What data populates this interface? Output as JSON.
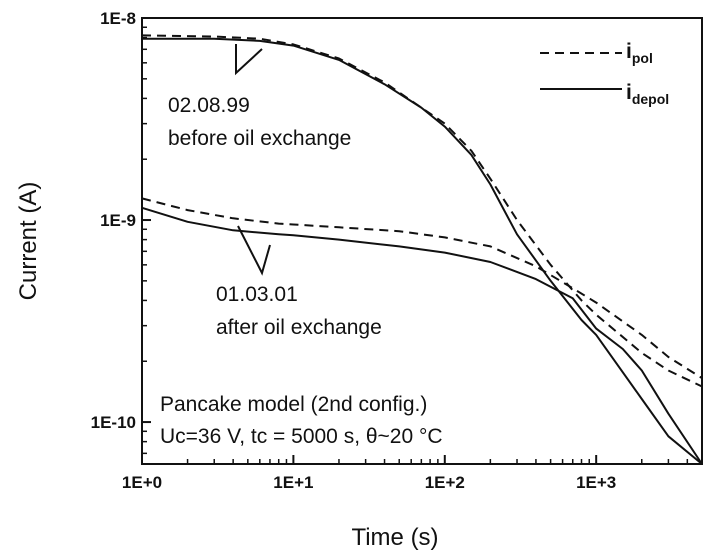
{
  "chart_data": {
    "type": "line",
    "xlabel": "Time (s)",
    "ylabel": "Current (A)",
    "x_scale": "log",
    "y_scale": "log",
    "xlim": [
      1,
      5000
    ],
    "ylim": [
      6.2e-11,
      1e-08
    ],
    "grid": false,
    "x_ticks": [
      {
        "value": 1,
        "label": "1E+0"
      },
      {
        "value": 10,
        "label": "1E+1"
      },
      {
        "value": 100,
        "label": "1E+2"
      },
      {
        "value": 1000,
        "label": "1E+3"
      }
    ],
    "y_ticks": [
      {
        "value": 1e-08,
        "label": "1E-8"
      },
      {
        "value": 1e-09,
        "label": "1E-9"
      },
      {
        "value": 1e-10,
        "label": "1E-10"
      }
    ],
    "legend": {
      "position": "top-right",
      "entries": [
        {
          "base": "i",
          "sub": "pol",
          "style": "dashed"
        },
        {
          "base": "i",
          "sub": "depol",
          "style": "solid"
        }
      ]
    },
    "series": [
      {
        "style": "dashed",
        "group": "02.08.99",
        "points": [
          [
            1,
            8.2e-09
          ],
          [
            3,
            8.1e-09
          ],
          [
            6,
            7.9e-09
          ],
          [
            10,
            7.4e-09
          ],
          [
            20,
            6.3e-09
          ],
          [
            40,
            4.8e-09
          ],
          [
            70,
            3.6e-09
          ],
          [
            100,
            3e-09
          ],
          [
            150,
            2.2e-09
          ],
          [
            200,
            1.6e-09
          ],
          [
            300,
            1e-09
          ],
          [
            500,
            6e-10
          ],
          [
            800,
            4e-10
          ],
          [
            1000,
            3.4e-10
          ],
          [
            2000,
            2.2e-10
          ],
          [
            3000,
            1.8e-10
          ],
          [
            5000,
            1.5e-10
          ]
        ]
      },
      {
        "style": "solid",
        "group": "02.08.99",
        "points": [
          [
            1,
            7.9e-09
          ],
          [
            3,
            7.9e-09
          ],
          [
            6,
            7.7e-09
          ],
          [
            10,
            7.3e-09
          ],
          [
            20,
            6.2e-09
          ],
          [
            40,
            4.7e-09
          ],
          [
            70,
            3.6e-09
          ],
          [
            100,
            2.9e-09
          ],
          [
            150,
            2.1e-09
          ],
          [
            200,
            1.5e-09
          ],
          [
            300,
            8.5e-10
          ],
          [
            500,
            5e-10
          ],
          [
            800,
            3.2e-10
          ],
          [
            1000,
            2.7e-10
          ],
          [
            2000,
            1.3e-10
          ],
          [
            3000,
            8.5e-11
          ],
          [
            5000,
            6.2e-11
          ]
        ]
      },
      {
        "style": "dashed",
        "group": "01.03.01",
        "points": [
          [
            1,
            1.28e-09
          ],
          [
            2,
            1.12e-09
          ],
          [
            4,
            1.02e-09
          ],
          [
            8,
            9.6e-10
          ],
          [
            10,
            9.5e-10
          ],
          [
            20,
            9.2e-10
          ],
          [
            50,
            8.8e-10
          ],
          [
            100,
            8.2e-10
          ],
          [
            200,
            7.4e-10
          ],
          [
            400,
            5.9e-10
          ],
          [
            700,
            4.6e-10
          ],
          [
            1000,
            3.9e-10
          ],
          [
            2000,
            2.7e-10
          ],
          [
            3000,
            2.1e-10
          ],
          [
            5000,
            1.65e-10
          ]
        ]
      },
      {
        "style": "solid",
        "group": "01.03.01",
        "points": [
          [
            1,
            1.15e-09
          ],
          [
            2,
            9.8e-10
          ],
          [
            4,
            8.9e-10
          ],
          [
            8,
            8.5e-10
          ],
          [
            10,
            8.4e-10
          ],
          [
            20,
            8e-10
          ],
          [
            50,
            7.4e-10
          ],
          [
            100,
            6.9e-10
          ],
          [
            200,
            6.2e-10
          ],
          [
            400,
            5.1e-10
          ],
          [
            700,
            4.1e-10
          ],
          [
            1000,
            2.9e-10
          ],
          [
            1500,
            2.3e-10
          ],
          [
            2000,
            1.8e-10
          ],
          [
            3000,
            1.1e-10
          ],
          [
            5000,
            6.2e-11
          ]
        ]
      }
    ],
    "annotations": [
      {
        "lines": [
          "02.08.99",
          "before oil exchange"
        ]
      },
      {
        "lines": [
          "01.03.01",
          "after oil exchange"
        ]
      },
      {
        "lines": [
          "Pancake model (2nd config.)",
          "Uc=36 V, tc = 5000 s, θ~20 °C"
        ]
      }
    ]
  }
}
